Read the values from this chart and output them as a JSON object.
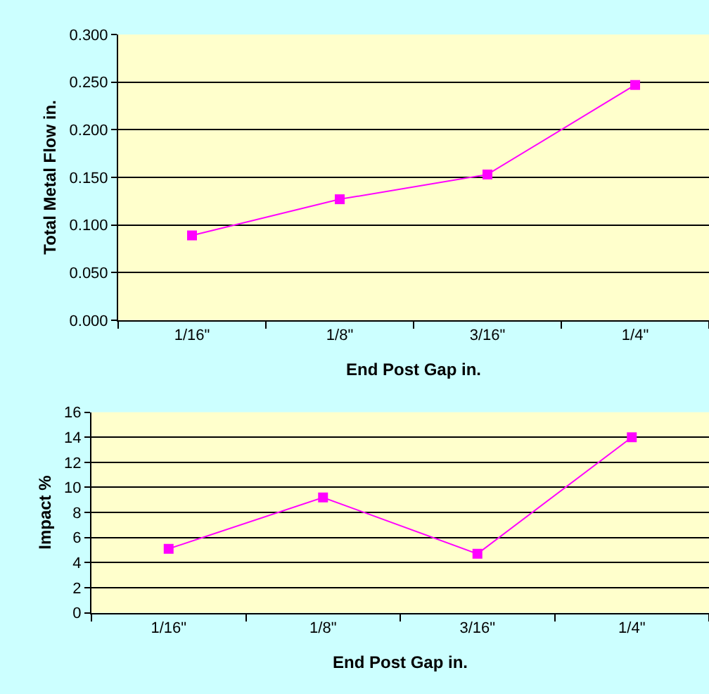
{
  "chart_data": [
    {
      "type": "line",
      "categories": [
        "1/16\"",
        "1/8\"",
        "3/16\"",
        "1/4\""
      ],
      "xlabel": "End Post Gap in.",
      "ylabel": "Total Metal Flow in.",
      "series": [
        {
          "color": "#ff00ff",
          "values": [
            0.089,
            0.127,
            0.153,
            0.247
          ]
        }
      ],
      "ylim": [
        0,
        0.3
      ],
      "yticks": [
        {
          "value": 0,
          "label": "0.000"
        },
        {
          "value": 0.05,
          "label": "0.050"
        },
        {
          "value": 0.1,
          "label": "0.100"
        },
        {
          "value": 0.15,
          "label": "0.150"
        },
        {
          "value": 0.2,
          "label": "0.200"
        },
        {
          "value": 0.25,
          "label": "0.250"
        },
        {
          "value": 0.3,
          "label": "0.300"
        }
      ],
      "grid": "y",
      "marker": "square",
      "line_style": "solid"
    },
    {
      "type": "line",
      "categories": [
        "1/16\"",
        "1/8\"",
        "3/16\"",
        "1/4\""
      ],
      "xlabel": "End Post Gap in.",
      "ylabel": "Impact %",
      "series": [
        {
          "color": "#ff00ff",
          "values": [
            5.1,
            9.2,
            4.7,
            14.0
          ]
        }
      ],
      "ylim": [
        0,
        16
      ],
      "yticks": [
        0,
        2,
        4,
        6,
        8,
        10,
        12,
        14,
        16
      ],
      "grid": "y",
      "marker": "square",
      "line_style": "solid"
    }
  ]
}
